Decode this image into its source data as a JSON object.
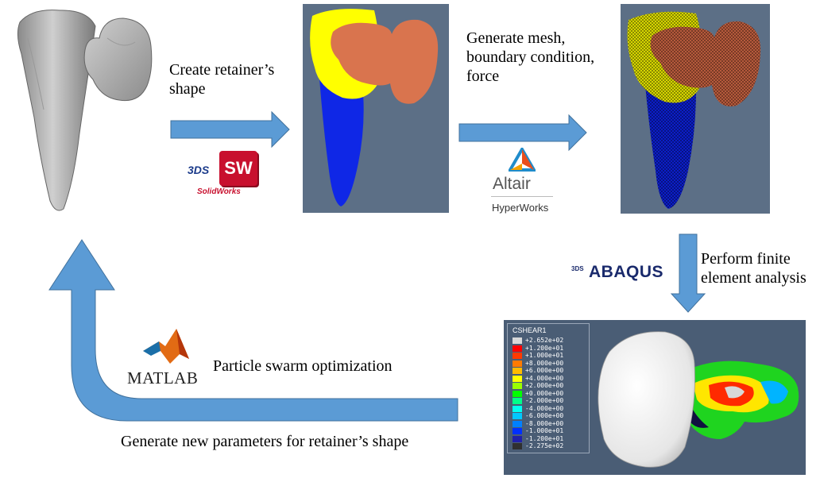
{
  "steps": {
    "create_shape": {
      "line1": "Create retainer’s",
      "line2": "shape"
    },
    "generate_mesh": {
      "line1": "Generate mesh,",
      "line2": "boundary condition,",
      "line3": "force"
    },
    "finite_element": {
      "line1": "Perform finite",
      "line2": "element analysis"
    },
    "pso": {
      "label": "Particle swarm optimization"
    },
    "new_params": {
      "label": "Generate new parameters for retainer’s shape"
    }
  },
  "logos": {
    "solidworks": {
      "badge": "SW",
      "ds": "3DS",
      "name": "SolidWorks"
    },
    "altair": {
      "name": "Altair",
      "product": "HyperWorks"
    },
    "abaqus": {
      "prefix": "3DS",
      "name": "ABAQUS"
    },
    "matlab": {
      "name": "MATLAB"
    }
  },
  "legend": {
    "title": "CSHEAR1",
    "entries": [
      {
        "color": "#d8d8d8",
        "value": "+2.652e+02"
      },
      {
        "color": "#ff0000",
        "value": "+1.200e+01"
      },
      {
        "color": "#ff3a00",
        "value": "+1.000e+01"
      },
      {
        "color": "#ff7a00",
        "value": "+8.000e+00"
      },
      {
        "color": "#ffbb00",
        "value": "+6.000e+00"
      },
      {
        "color": "#ffff00",
        "value": "+4.000e+00"
      },
      {
        "color": "#9aff00",
        "value": "+2.000e+00"
      },
      {
        "color": "#00ff00",
        "value": "+0.000e+00"
      },
      {
        "color": "#00ff88",
        "value": "-2.000e+00"
      },
      {
        "color": "#00ffee",
        "value": "-4.000e+00"
      },
      {
        "color": "#00c8ff",
        "value": "-6.000e+00"
      },
      {
        "color": "#0080ff",
        "value": "-8.000e+00"
      },
      {
        "color": "#0030ff",
        "value": "-1.000e+01"
      },
      {
        "color": "#2020aa",
        "value": "-1.200e+01"
      },
      {
        "color": "#303030",
        "value": "-2.275e+02"
      }
    ]
  },
  "colors": {
    "arrow_fill": "#5b9bd5",
    "arrow_stroke": "#41719c",
    "panel_bg": "#5b6e85"
  }
}
